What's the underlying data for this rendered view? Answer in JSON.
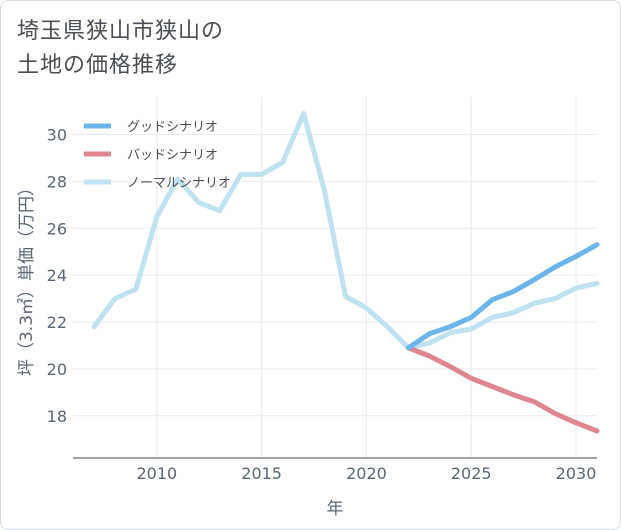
{
  "title": {
    "line1": "埼玉県狭山市狭山の",
    "line2": "土地の価格推移"
  },
  "chart_data": {
    "type": "line",
    "title": "埼玉県狭山市狭山の土地の価格推移",
    "xlabel": "年",
    "ylabel": "坪（3.3㎡）単価（万円）",
    "xlim": [
      2006,
      2031
    ],
    "ylim": [
      16.2,
      31.6
    ],
    "x_ticks": [
      2010,
      2015,
      2020,
      2025,
      2030
    ],
    "y_ticks": [
      18,
      20,
      22,
      24,
      26,
      28,
      30
    ],
    "grid": true,
    "legend_position": "top-left",
    "series": [
      {
        "name": "グッドシナリオ",
        "color": "#6cb5ea",
        "x": [
          2022,
          2023,
          2024,
          2025,
          2026,
          2027,
          2028,
          2029,
          2030,
          2031
        ],
        "values": [
          20.9,
          21.5,
          21.8,
          22.2,
          22.95,
          23.3,
          23.8,
          24.35,
          24.8,
          25.3
        ]
      },
      {
        "name": "バッドシナリオ",
        "color": "#de8590",
        "x": [
          2022,
          2023,
          2024,
          2025,
          2026,
          2027,
          2028,
          2029,
          2030,
          2031
        ],
        "values": [
          20.9,
          20.55,
          20.1,
          19.6,
          19.25,
          18.9,
          18.6,
          18.1,
          17.7,
          17.35
        ]
      },
      {
        "name": "ノーマルシナリオ",
        "color": "#bfe1f0",
        "x": [
          2007,
          2008,
          2009,
          2010,
          2011,
          2012,
          2013,
          2014,
          2015,
          2016,
          2017,
          2018,
          2019,
          2020,
          2021,
          2022,
          2023,
          2024,
          2025,
          2026,
          2027,
          2028,
          2029,
          2030,
          2031
        ],
        "values": [
          21.8,
          23.0,
          23.4,
          26.5,
          28.1,
          27.1,
          26.75,
          28.3,
          28.3,
          28.8,
          30.9,
          27.6,
          23.1,
          22.6,
          21.8,
          20.9,
          21.1,
          21.55,
          21.7,
          22.2,
          22.4,
          22.8,
          23.0,
          23.45,
          23.65
        ]
      }
    ]
  }
}
